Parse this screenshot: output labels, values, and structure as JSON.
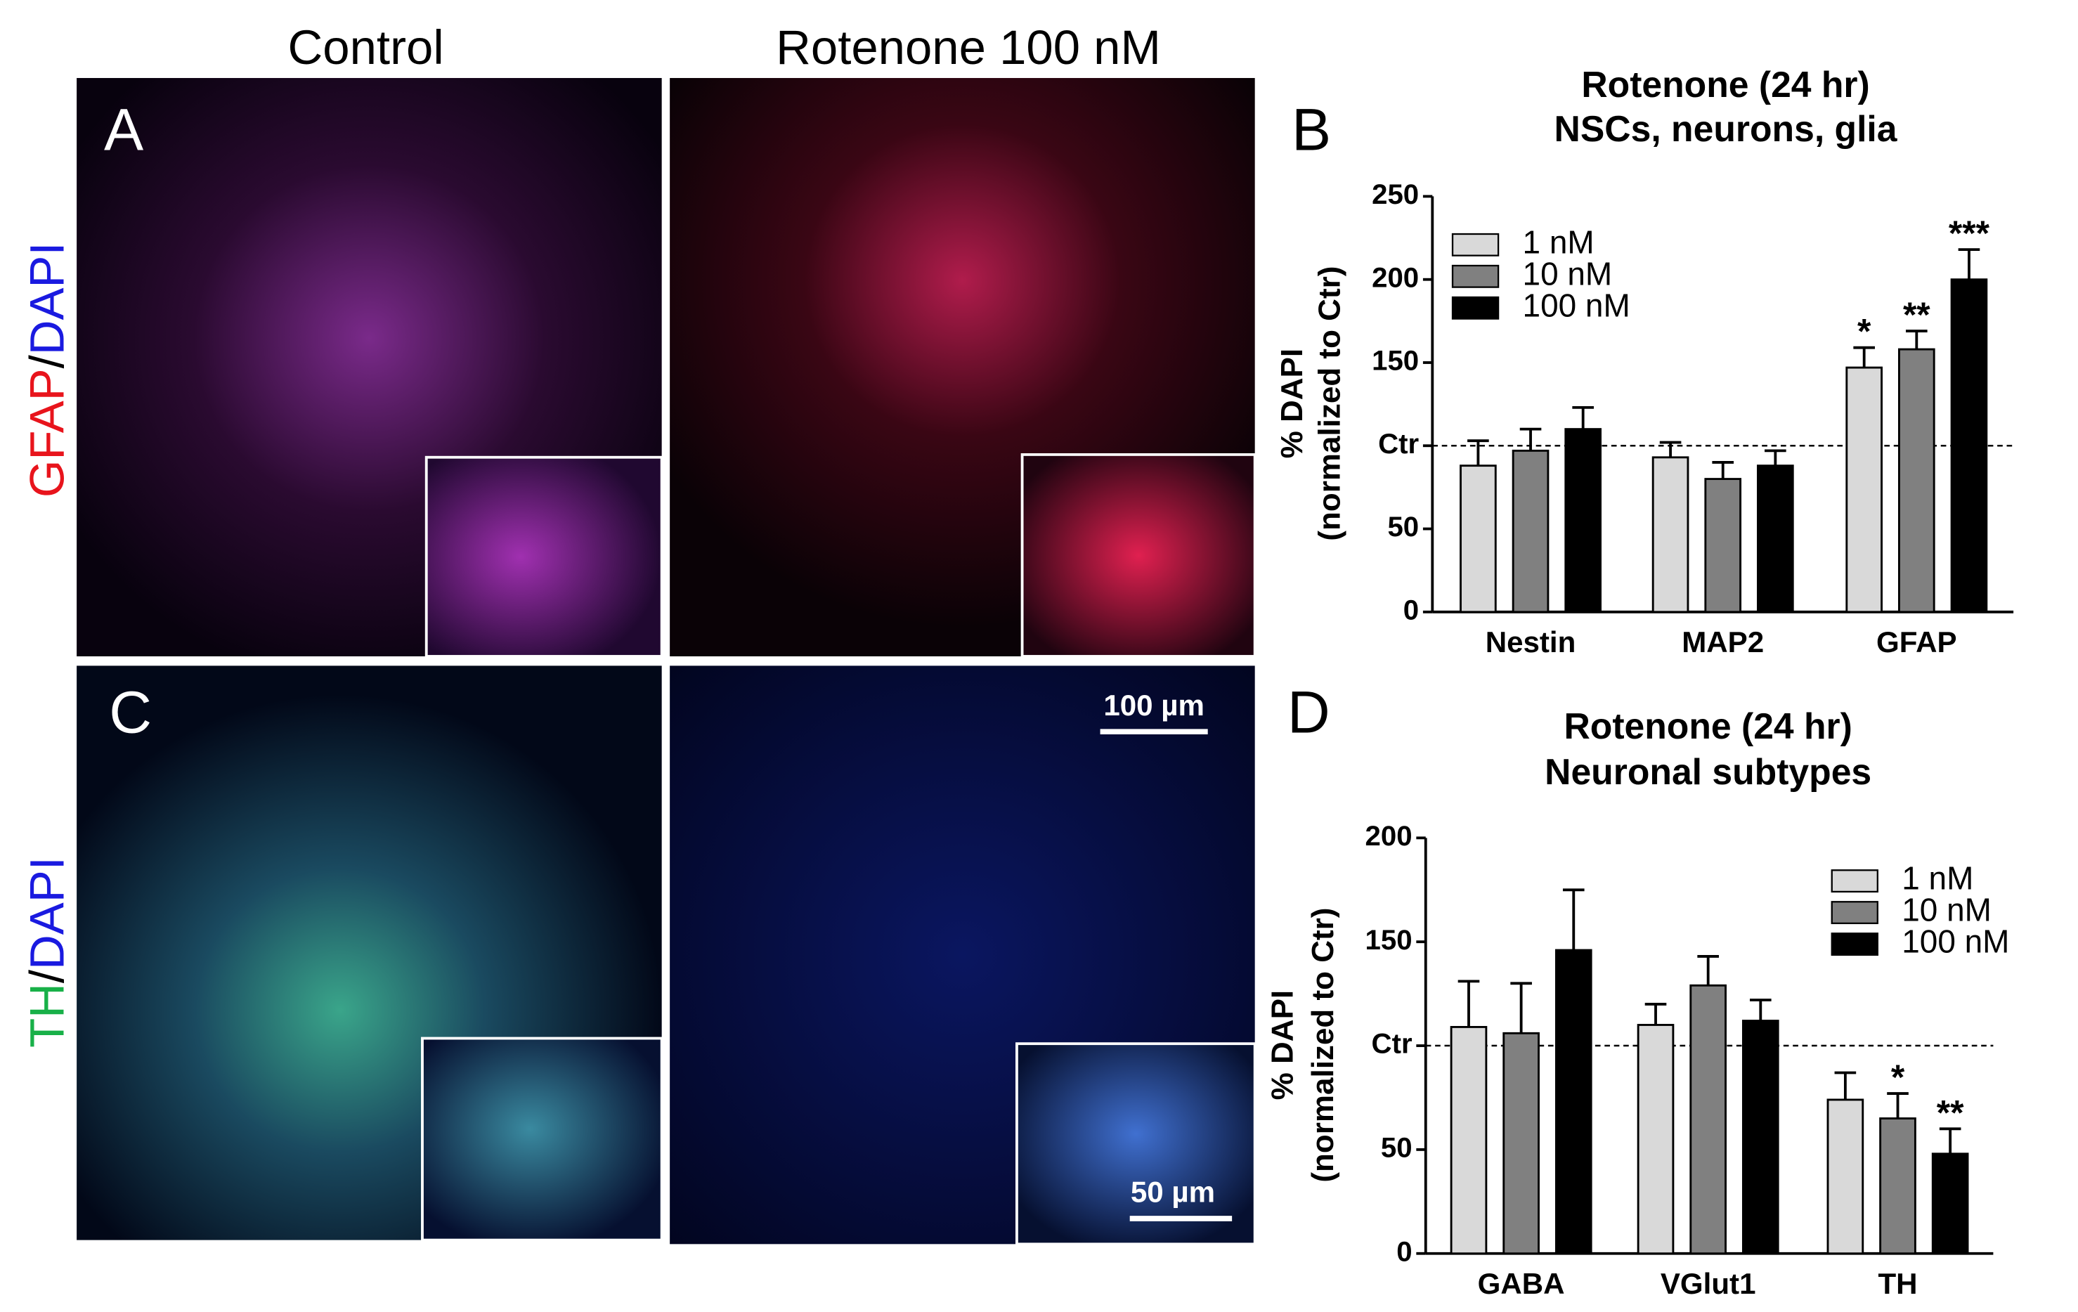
{
  "figure": {
    "column_titles": [
      "Control",
      "Rotenone 100 nM"
    ],
    "panel_letters": [
      "A",
      "B",
      "C",
      "D"
    ],
    "row_labels": [
      {
        "parts": [
          "GFAP",
          "/",
          "DAPI"
        ]
      },
      {
        "parts": [
          "TH",
          "/",
          "DAPI"
        ]
      }
    ],
    "scale_bars": [
      "100 µm",
      "50 µm"
    ]
  },
  "chart_data": [
    {
      "type": "bar",
      "title": [
        "Rotenone (24 hr)",
        "NSCs, neurons, glia"
      ],
      "ylabel": [
        "% DAPI",
        "(normalized to Ctr)"
      ],
      "categories": [
        "Nestin",
        "MAP2",
        "GFAP"
      ],
      "series": [
        {
          "name": "1 nM",
          "color": "#d9d9d9",
          "values": [
            88,
            93,
            147
          ],
          "errors": [
            15,
            9,
            12
          ],
          "sig": [
            null,
            null,
            "*"
          ]
        },
        {
          "name": "10 nM",
          "color": "#808080",
          "values": [
            97,
            80,
            158
          ],
          "errors": [
            13,
            10,
            11
          ],
          "sig": [
            null,
            null,
            "**"
          ]
        },
        {
          "name": "100 nM",
          "color": "#000000",
          "values": [
            110,
            88,
            200
          ],
          "errors": [
            13,
            9,
            18
          ],
          "sig": [
            null,
            null,
            "***"
          ]
        }
      ],
      "ylim": [
        0,
        250
      ],
      "yticks": [
        0,
        50,
        {
          "value": 100,
          "label": "Ctr"
        },
        150,
        200,
        250
      ],
      "refline": 100,
      "legend": "upper left"
    },
    {
      "type": "bar",
      "title": [
        "Rotenone (24 hr)",
        "Neuronal subtypes"
      ],
      "ylabel": [
        "% DAPI",
        "(normalized to Ctr)"
      ],
      "categories": [
        "GABA",
        "VGlut1",
        "TH"
      ],
      "series": [
        {
          "name": "1 nM",
          "color": "#d9d9d9",
          "values": [
            109,
            110,
            74
          ],
          "errors": [
            22,
            10,
            13
          ],
          "sig": [
            null,
            null,
            null
          ]
        },
        {
          "name": "10 nM",
          "color": "#808080",
          "values": [
            106,
            129,
            65
          ],
          "errors": [
            24,
            14,
            12
          ],
          "sig": [
            null,
            null,
            "*"
          ]
        },
        {
          "name": "100 nM",
          "color": "#000000",
          "values": [
            146,
            112,
            48
          ],
          "errors": [
            29,
            10,
            12
          ],
          "sig": [
            null,
            null,
            "**"
          ]
        }
      ],
      "ylim": [
        0,
        200
      ],
      "yticks": [
        0,
        50,
        {
          "value": 100,
          "label": "Ctr"
        },
        150,
        200
      ],
      "refline": 100,
      "legend": "upper right"
    }
  ]
}
